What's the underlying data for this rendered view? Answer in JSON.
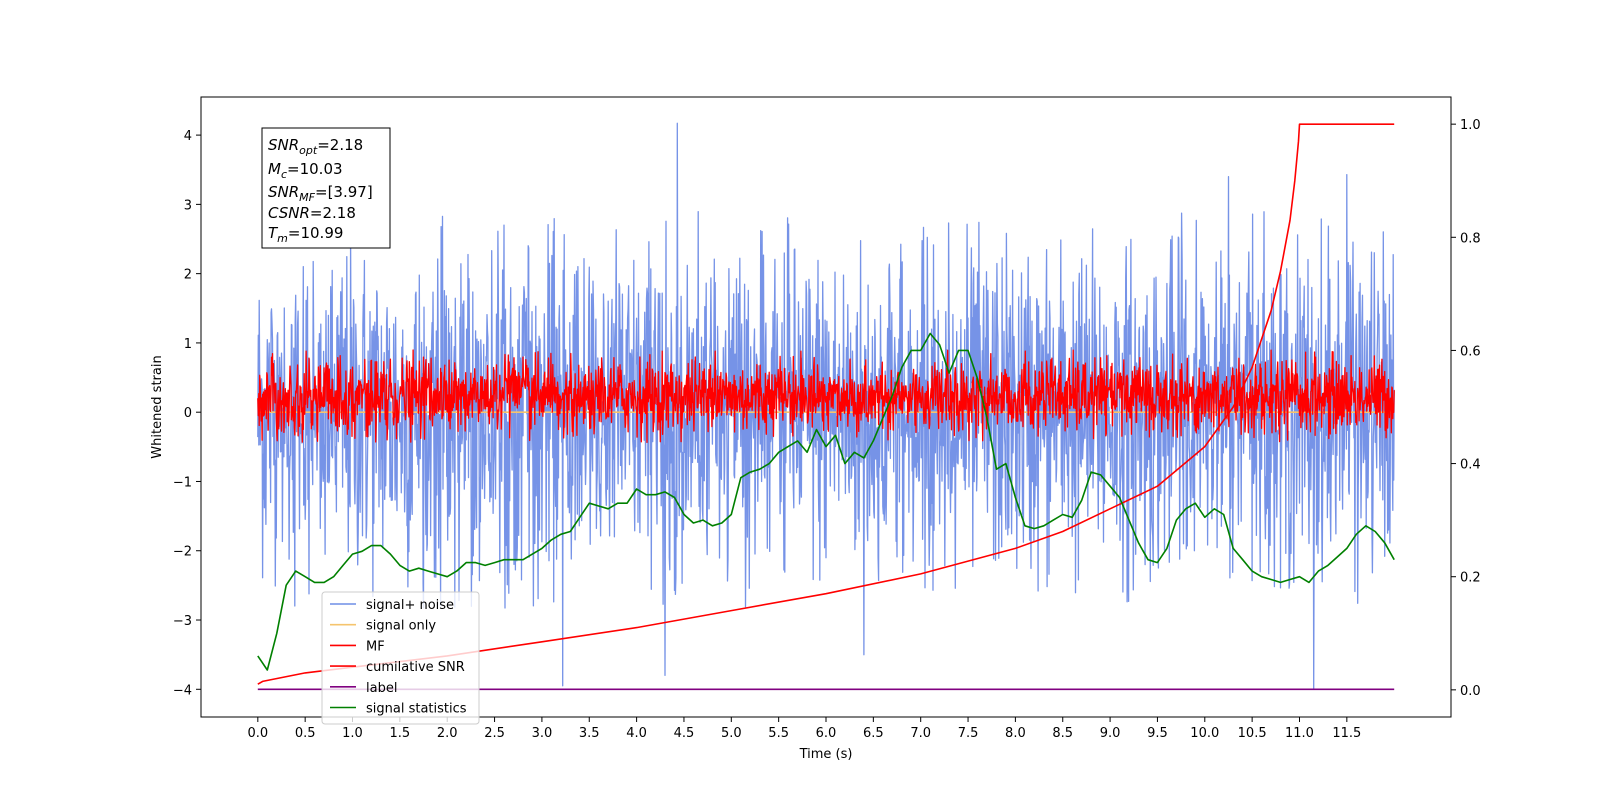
{
  "chart_data": {
    "type": "line",
    "xlabel": "Time (s)",
    "ylabel": "Whitened strain",
    "xlim": [
      -0.6,
      12.6
    ],
    "ylim": [
      -4.4,
      4.55
    ],
    "y2lim": [
      -0.048,
      1.048
    ],
    "x_ticks": [
      "0.0",
      "0.5",
      "1.0",
      "1.5",
      "2.0",
      "2.5",
      "3.0",
      "3.5",
      "4.0",
      "4.5",
      "5.0",
      "5.5",
      "6.0",
      "6.5",
      "7.0",
      "7.5",
      "8.0",
      "8.5",
      "9.0",
      "9.5",
      "10.0",
      "10.5",
      "11.0",
      "11.5"
    ],
    "y_ticks": [
      "−4",
      "−3",
      "−2",
      "−1",
      "0",
      "1",
      "2",
      "3",
      "4"
    ],
    "y2_ticks": [
      "0.0",
      "0.2",
      "0.4",
      "0.6",
      "0.8",
      "1.0"
    ],
    "grid": false,
    "info_box": {
      "snr_opt": {
        "name": "SNR",
        "sub": "opt",
        "value": "=2.18"
      },
      "mc": {
        "name": "M",
        "sub": "c",
        "value": "=10.03"
      },
      "snr_mf": {
        "name": "SNR",
        "sub": "MF",
        "value": "=[3.97]"
      },
      "csnr": {
        "name": "CSNR",
        "sub": "",
        "value": "=2.18"
      },
      "tm": {
        "name": "T",
        "sub": "m",
        "value": "=10.99"
      }
    },
    "legend": {
      "position": "lower-left",
      "entries": [
        {
          "label": "signal+ noise",
          "color": "#6f8de6"
        },
        {
          "label": "signal only",
          "color": "#f5c46e"
        },
        {
          "label": "MF",
          "color": "#ff0000"
        },
        {
          "label": "cumilative SNR",
          "color": "#ff0000"
        },
        {
          "label": "label",
          "color": "#800080"
        },
        {
          "label": "signal statistics",
          "color": "#008000"
        }
      ]
    },
    "series": [
      {
        "name": "signal+ noise",
        "axis": "left",
        "color": "#6f8de6",
        "style": "noise",
        "x_range": [
          0,
          12
        ],
        "envelope": [
          -2.9,
          2.9
        ],
        "peaks": [
          [
            4.43,
            4.17
          ],
          [
            11.5,
            3.43
          ],
          [
            11.15,
            -4.0
          ],
          [
            3.22,
            -3.95
          ],
          [
            4.3,
            -3.8
          ],
          [
            6.4,
            -3.5
          ],
          [
            10.25,
            3.4
          ]
        ]
      },
      {
        "name": "signal only",
        "axis": "left",
        "color": "#f5c46e",
        "x": [
          0,
          12
        ],
        "y": [
          0,
          0
        ]
      },
      {
        "name": "MF",
        "axis": "left",
        "color": "#ff0000",
        "style": "noise",
        "x_range": [
          0,
          12
        ],
        "envelope": [
          -0.45,
          0.9
        ]
      },
      {
        "name": "cumilative SNR",
        "axis": "right",
        "color": "#ff0000",
        "x": [
          0.0,
          0.05,
          0.5,
          1.0,
          2.0,
          3.0,
          4.0,
          5.0,
          6.0,
          7.0,
          8.0,
          8.5,
          9.0,
          9.5,
          10.0,
          10.3,
          10.5,
          10.7,
          10.8,
          10.9,
          10.95,
          10.99,
          11.0,
          12.0
        ],
        "y": [
          0.01,
          0.015,
          0.03,
          0.04,
          0.06,
          0.085,
          0.11,
          0.14,
          0.17,
          0.205,
          0.25,
          0.28,
          0.32,
          0.36,
          0.43,
          0.5,
          0.57,
          0.67,
          0.74,
          0.83,
          0.9,
          0.97,
          1.0,
          1.0
        ]
      },
      {
        "name": "label",
        "axis": "left",
        "color": "#800080",
        "x": [
          0,
          12
        ],
        "y": [
          -4,
          -4
        ]
      },
      {
        "name": "signal statistics",
        "axis": "right",
        "color": "#008000",
        "x": [
          0.0,
          0.1,
          0.2,
          0.3,
          0.4,
          0.5,
          0.6,
          0.7,
          0.8,
          0.9,
          1.0,
          1.1,
          1.2,
          1.3,
          1.4,
          1.5,
          1.6,
          1.7,
          1.8,
          1.9,
          2.0,
          2.1,
          2.2,
          2.3,
          2.4,
          2.5,
          2.6,
          2.7,
          2.8,
          2.9,
          3.0,
          3.1,
          3.2,
          3.3,
          3.4,
          3.5,
          3.6,
          3.7,
          3.8,
          3.9,
          4.0,
          4.1,
          4.2,
          4.3,
          4.4,
          4.5,
          4.6,
          4.7,
          4.8,
          4.9,
          5.0,
          5.1,
          5.2,
          5.3,
          5.4,
          5.5,
          5.6,
          5.7,
          5.8,
          5.9,
          6.0,
          6.1,
          6.2,
          6.3,
          6.4,
          6.5,
          6.6,
          6.7,
          6.8,
          6.9,
          7.0,
          7.1,
          7.2,
          7.3,
          7.4,
          7.5,
          7.6,
          7.7,
          7.8,
          7.9,
          8.0,
          8.1,
          8.2,
          8.3,
          8.4,
          8.5,
          8.6,
          8.7,
          8.8,
          8.9,
          9.0,
          9.1,
          9.2,
          9.3,
          9.4,
          9.5,
          9.6,
          9.7,
          9.8,
          9.9,
          10.0,
          10.1,
          10.2,
          10.3,
          10.4,
          10.5,
          10.6,
          10.7,
          10.8,
          10.9,
          11.0,
          11.1,
          11.2,
          11.3,
          11.4,
          11.5,
          11.6,
          11.7,
          11.8,
          11.9,
          12.0
        ],
        "y": [
          0.06,
          0.035,
          0.1,
          0.185,
          0.21,
          0.2,
          0.19,
          0.19,
          0.2,
          0.22,
          0.24,
          0.245,
          0.255,
          0.255,
          0.24,
          0.22,
          0.21,
          0.215,
          0.21,
          0.205,
          0.2,
          0.21,
          0.225,
          0.225,
          0.22,
          0.225,
          0.23,
          0.23,
          0.23,
          0.24,
          0.25,
          0.265,
          0.275,
          0.28,
          0.305,
          0.33,
          0.325,
          0.32,
          0.33,
          0.33,
          0.355,
          0.345,
          0.345,
          0.35,
          0.34,
          0.31,
          0.295,
          0.3,
          0.29,
          0.295,
          0.31,
          0.375,
          0.385,
          0.39,
          0.4,
          0.42,
          0.43,
          0.44,
          0.42,
          0.46,
          0.43,
          0.45,
          0.4,
          0.42,
          0.41,
          0.44,
          0.48,
          0.52,
          0.57,
          0.6,
          0.6,
          0.63,
          0.61,
          0.56,
          0.6,
          0.6,
          0.55,
          0.48,
          0.39,
          0.4,
          0.34,
          0.29,
          0.285,
          0.29,
          0.3,
          0.31,
          0.305,
          0.335,
          0.385,
          0.38,
          0.36,
          0.34,
          0.3,
          0.26,
          0.23,
          0.225,
          0.25,
          0.3,
          0.32,
          0.33,
          0.305,
          0.32,
          0.31,
          0.25,
          0.23,
          0.21,
          0.2,
          0.195,
          0.19,
          0.195,
          0.2,
          0.19,
          0.21,
          0.22,
          0.235,
          0.25,
          0.275,
          0.29,
          0.28,
          0.26,
          0.23
        ]
      }
    ]
  }
}
